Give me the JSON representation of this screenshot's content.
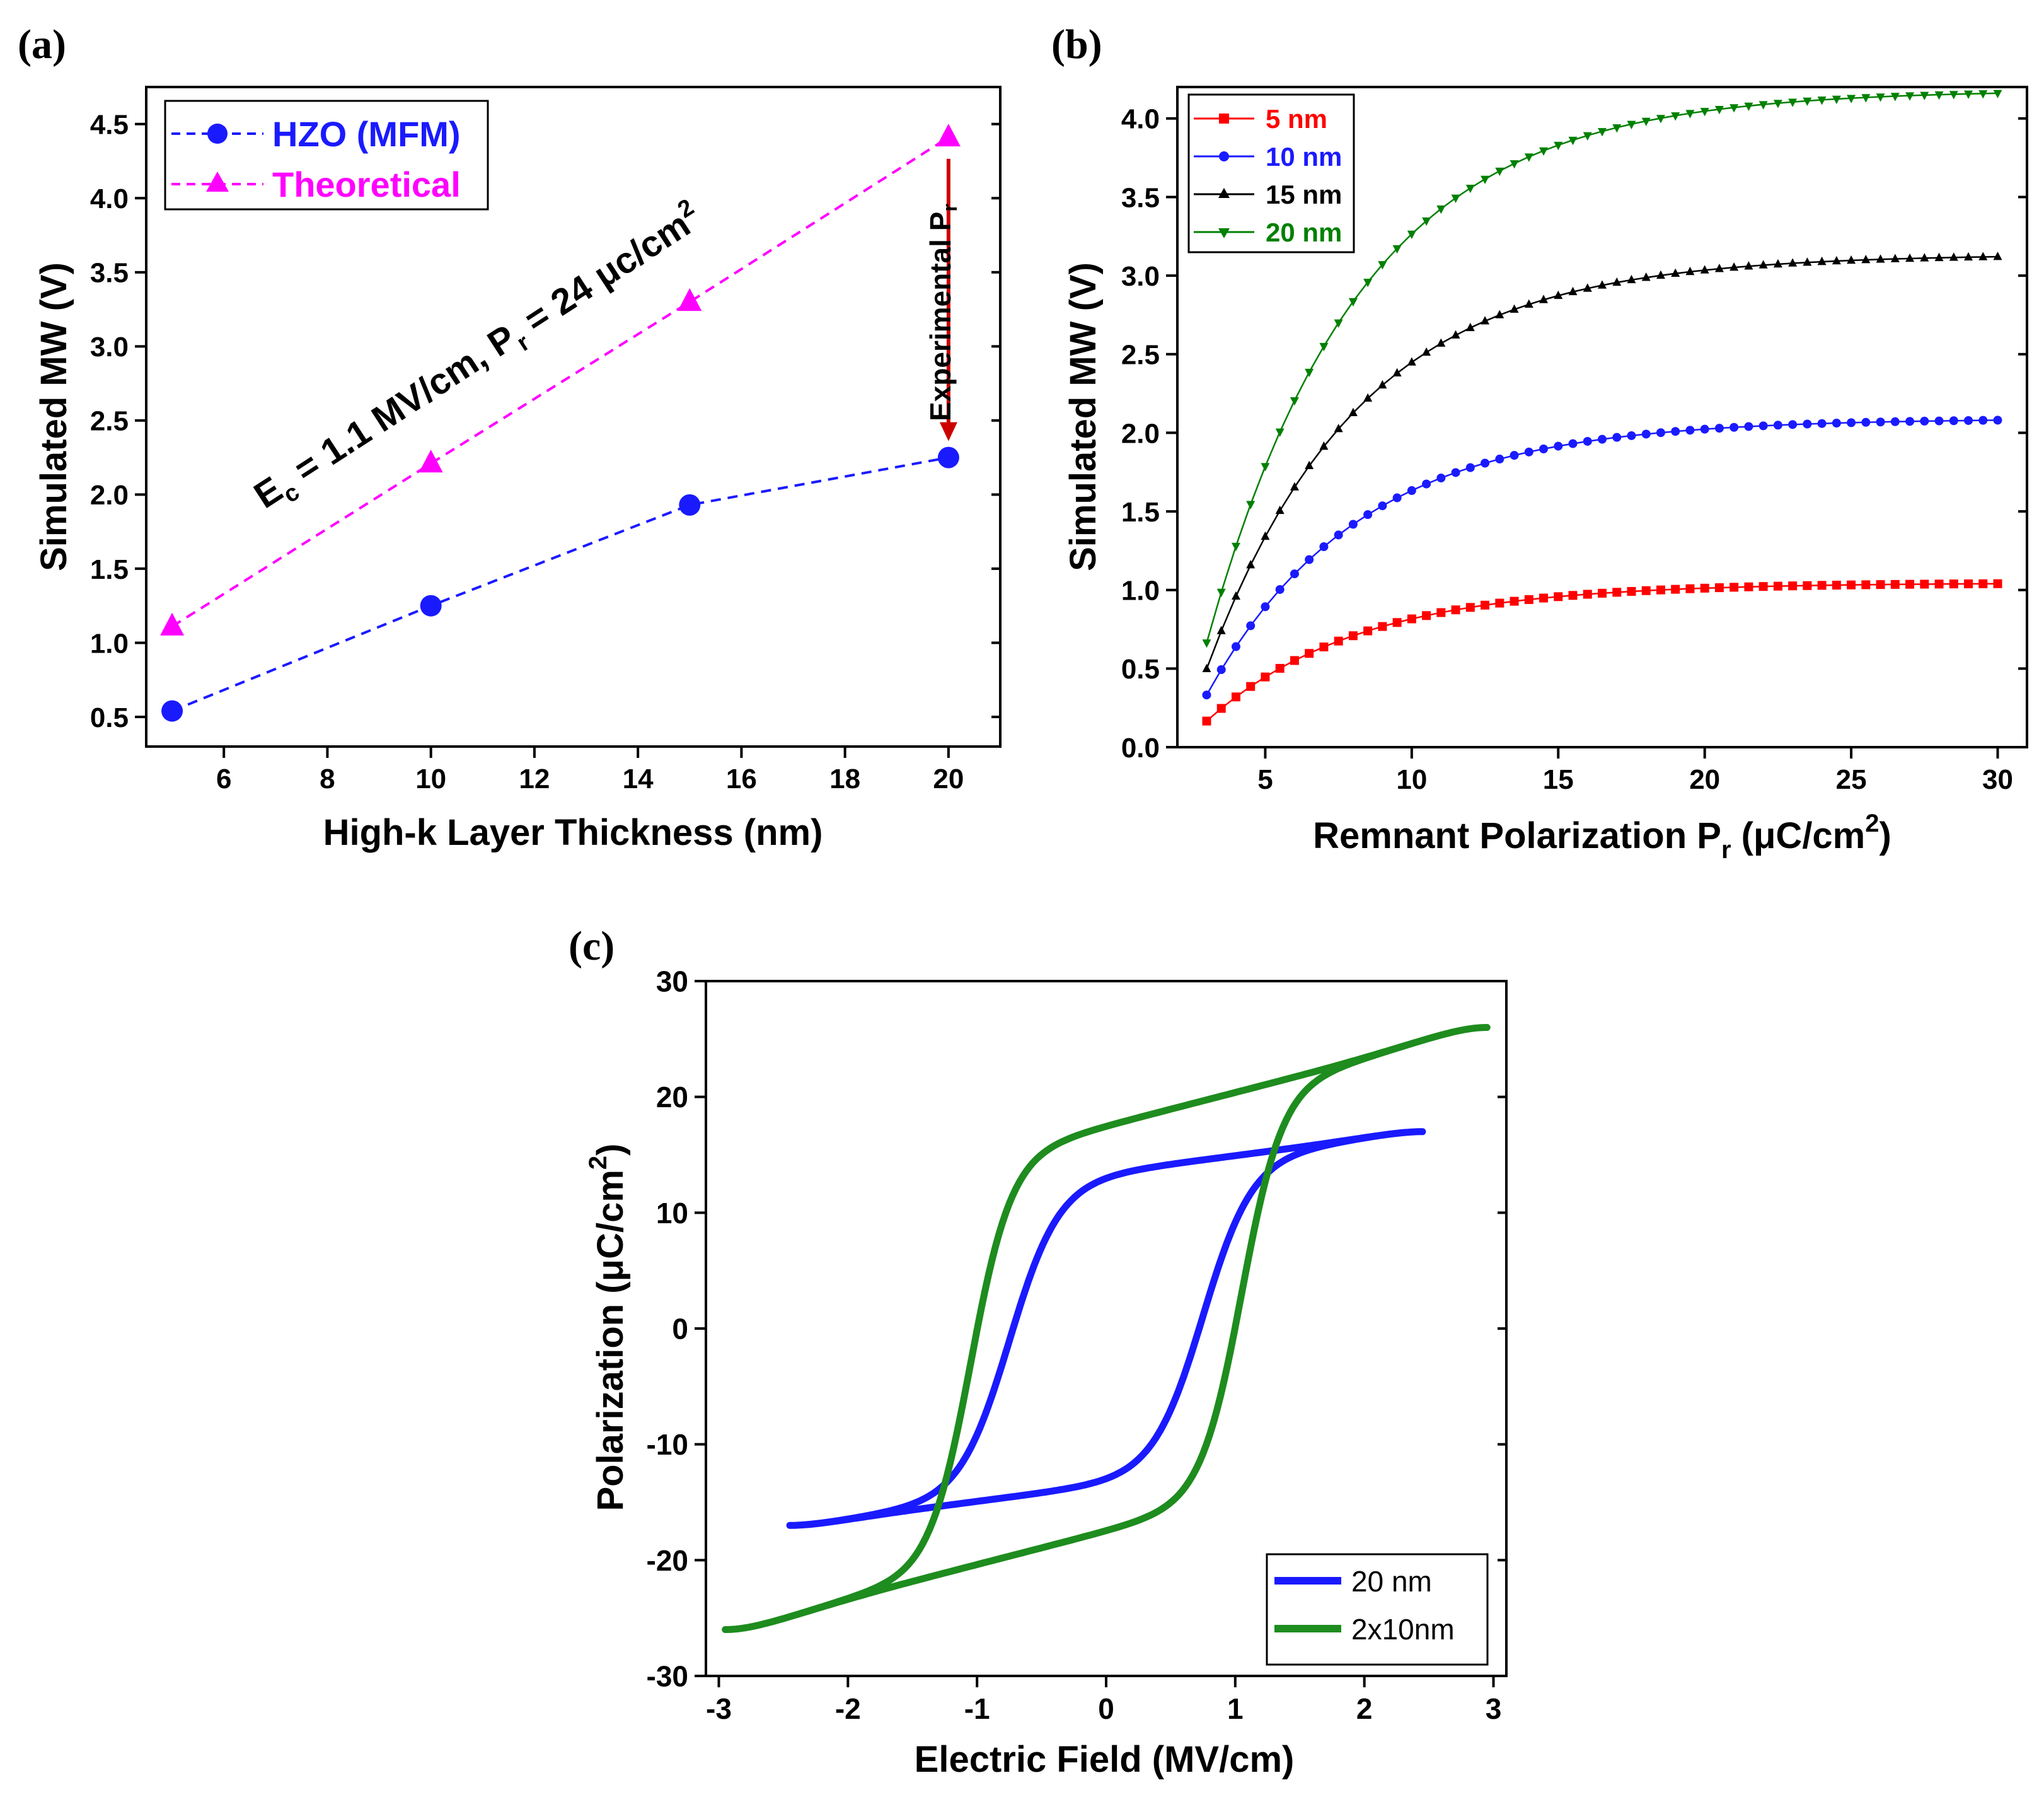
{
  "panels": {
    "a": "(a)",
    "b": "(b)",
    "c": "(c)"
  },
  "chart_data": [
    {
      "id": "a",
      "type": "line",
      "xlabel": "High-k Layer Thickness (nm)",
      "ylabel": "Simulated MW (V)",
      "xlim": [
        4.5,
        21
      ],
      "ylim": [
        0.3,
        4.75
      ],
      "xticks": [
        6,
        8,
        10,
        12,
        14,
        16,
        18,
        20
      ],
      "yticks": [
        0.5,
        1.0,
        1.5,
        2.0,
        2.5,
        3.0,
        3.5,
        4.0,
        4.5
      ],
      "series": [
        {
          "name": "HZO (MFM)",
          "color": "#1a1aff",
          "marker": "circle",
          "x": [
            5,
            10,
            15,
            20
          ],
          "values": [
            0.54,
            1.25,
            1.93,
            2.25
          ]
        },
        {
          "name": "Theoretical",
          "color": "#ff00ff",
          "marker": "triangle",
          "x": [
            5,
            10,
            15,
            20
          ],
          "values": [
            1.11,
            2.21,
            3.3,
            4.41
          ]
        }
      ],
      "annotation_main": "E",
      "annotation_main_sub": "c",
      "annotation_main_mid": " = 1.1 MV/cm, P",
      "annotation_main_sub2": "r",
      "annotation_main_tail": " = 24 μc/cm",
      "annotation_main_sup": "2",
      "annotation_arrow": "Experimental P",
      "annotation_arrow_sub": "r",
      "arrow_from": 4.41,
      "arrow_to": 2.25,
      "arrow_color": "#cc0000"
    },
    {
      "id": "b",
      "type": "line",
      "xlabel": "Remnant Polarization P",
      "xlabel_sub": "r",
      "xlabel_tail": " (μC/cm",
      "xlabel_sup": "2",
      "xlabel_end": ")",
      "ylabel": "Simulated MW (V)",
      "xlim": [
        2,
        31
      ],
      "ylim": [
        0,
        4.2
      ],
      "xticks": [
        5,
        10,
        15,
        20,
        25,
        30
      ],
      "yticks": [
        0.0,
        0.5,
        1.0,
        1.5,
        2.0,
        2.5,
        3.0,
        3.5,
        4.0
      ],
      "x_start": 3,
      "x_end": 30,
      "x_step": 0.5,
      "series": [
        {
          "name": "5 nm",
          "color": "#ff0000",
          "marker": "square",
          "scale": 1.1,
          "kink": 2.1
        },
        {
          "name": "10 nm",
          "color": "#1a1aff",
          "marker": "circle",
          "scale": 2.2,
          "kink": 2.1
        },
        {
          "name": "15 nm",
          "color": "#000000",
          "marker": "triangle",
          "scale": 3.3,
          "kink": 2.1
        },
        {
          "name": "20 nm",
          "color": "#008000",
          "marker": "triangle-down",
          "scale": 4.4,
          "kink": 2.1
        }
      ]
    },
    {
      "id": "c",
      "type": "line",
      "xlabel": "Electric Field (MV/cm)",
      "ylabel": "Polarization (μC/cm",
      "ylabel_sup": "2",
      "ylabel_end": ")",
      "xlim": [
        -3.1,
        3.1
      ],
      "ylim": [
        -30,
        30
      ],
      "xticks": [
        -3,
        -2,
        -1,
        0,
        1,
        2,
        3
      ],
      "yticks": [
        -30,
        -20,
        -10,
        0,
        10,
        20,
        30
      ],
      "series": [
        {
          "name": "20 nm",
          "color": "#1a1aff",
          "Emax": 2.45,
          "Ec": 0.75,
          "Ps": 13.5,
          "Pmax": 17,
          "slope": 3.2,
          "width": 0.12
        },
        {
          "name": "2x10nm",
          "color": "#1e8c1e",
          "Emax": 2.95,
          "Ec": 1.05,
          "Ps": 17.5,
          "Pmax": 26,
          "slope": 4.5,
          "width": 0.07
        }
      ]
    }
  ]
}
